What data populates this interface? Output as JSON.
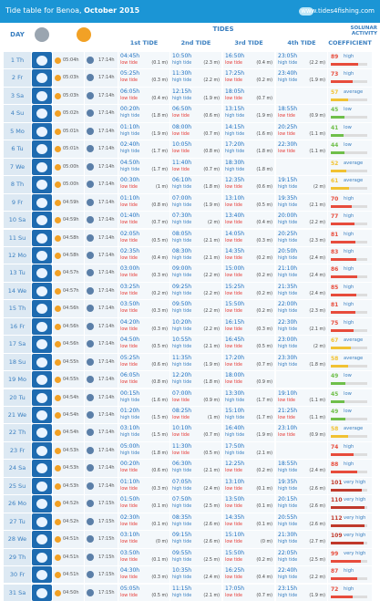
{
  "header": {
    "title_prefix": "Tide table for Benoa,",
    "title_month": "October 2015",
    "site": "www.tides4fishing.com"
  },
  "columns": {
    "day": "DAY",
    "tides": "TIDES",
    "tide1": "1st TIDE",
    "tide2": "2nd TIDE",
    "tide3": "3rd TIDE",
    "tide4": "4th TIDE",
    "coef": "COEFFICIENT",
    "solunar": "SOLUNAR ACTIVITY"
  },
  "rows": [
    {
      "day": "1 Th",
      "sr": "05:04h",
      "ss": "17:14h",
      "t": [
        [
          "04:45h",
          "low tide",
          "(0.1 m)"
        ],
        [
          "10:50h",
          "high tide",
          "(2.3 m)"
        ],
        [
          "16:50h",
          "low tide",
          "(0.4 m)"
        ],
        [
          "23:05h",
          "high tide",
          "(2.2 m)"
        ]
      ],
      "c": "89",
      "cl": "high"
    },
    {
      "day": "2 Fr",
      "sr": "05:03h",
      "ss": "17:14h",
      "t": [
        [
          "05:25h",
          "low tide",
          "(0.3 m)"
        ],
        [
          "11:30h",
          "high tide",
          "(2.2 m)"
        ],
        [
          "17:25h",
          "low tide",
          "(0.2 m)"
        ],
        [
          "23:40h",
          "high tide",
          "(1.9 m)"
        ]
      ],
      "c": "73",
      "cl": "high"
    },
    {
      "day": "3 Sa",
      "sr": "05:03h",
      "ss": "17:14h",
      "t": [
        [
          "06:05h",
          "low tide",
          "(0.4 m)"
        ],
        [
          "12:15h",
          "high tide",
          "(1.9 m)"
        ],
        [
          "18:05h",
          "low tide",
          "(0.7 m)"
        ],
        [
          "",
          "",
          ""
        ]
      ],
      "c": "57",
      "cl": "average"
    },
    {
      "day": "4 Su",
      "sr": "05:02h",
      "ss": "17:14h",
      "t": [
        [
          "00:20h",
          "high tide",
          "(1.8 m)"
        ],
        [
          "06:50h",
          "low tide",
          "(0.6 m)"
        ],
        [
          "13:15h",
          "high tide",
          "(1.9 m)"
        ],
        [
          "18:55h",
          "low tide",
          "(0.9 m)"
        ]
      ],
      "c": "45",
      "cl": "low"
    },
    {
      "day": "5 Mo",
      "sr": "05:01h",
      "ss": "17:14h",
      "t": [
        [
          "01:10h",
          "high tide",
          "(1.9 m)"
        ],
        [
          "08:00h",
          "low tide",
          "(0.7 m)"
        ],
        [
          "14:15h",
          "high tide",
          "(1.6 m)"
        ],
        [
          "20:25h",
          "low tide",
          "(1.1 m)"
        ]
      ],
      "c": "41",
      "cl": "low"
    },
    {
      "day": "6 Tu",
      "sr": "05:01h",
      "ss": "17:14h",
      "t": [
        [
          "02:40h",
          "high tide",
          "(1.7 m)"
        ],
        [
          "10:05h",
          "low tide",
          "(0.8 m)"
        ],
        [
          "17:20h",
          "high tide",
          "(1.8 m)"
        ],
        [
          "22:30h",
          "low tide",
          "(1.1 m)"
        ]
      ],
      "c": "44",
      "cl": "low"
    },
    {
      "day": "7 We",
      "sr": "05:00h",
      "ss": "17:14h",
      "t": [
        [
          "04:50h",
          "high tide",
          "(1.7 m)"
        ],
        [
          "11:40h",
          "low tide",
          "(0.7 m)"
        ],
        [
          "18:30h",
          "high tide",
          "(1.8 m)"
        ],
        [
          "",
          "",
          ""
        ]
      ],
      "c": "52",
      "cl": "average"
    },
    {
      "day": "8 Th",
      "sr": "05:00h",
      "ss": "17:14h",
      "t": [
        [
          "00:30h",
          "low tide",
          "(1 m)"
        ],
        [
          "06:10h",
          "high tide",
          "(1.8 m)"
        ],
        [
          "12:35h",
          "low tide",
          "(0.6 m)"
        ],
        [
          "19:15h",
          "high tide",
          "(2 m)"
        ]
      ],
      "c": "61",
      "cl": "average"
    },
    {
      "day": "9 Fr",
      "sr": "04:59h",
      "ss": "17:14h",
      "t": [
        [
          "01:10h",
          "low tide",
          "(0.8 m)"
        ],
        [
          "07:00h",
          "high tide",
          "(1.9 m)"
        ],
        [
          "13:10h",
          "low tide",
          "(0.5 m)"
        ],
        [
          "19:35h",
          "high tide",
          "(2.1 m)"
        ]
      ],
      "c": "70",
      "cl": "high"
    },
    {
      "day": "10 Sa",
      "sr": "04:59h",
      "ss": "17:14h",
      "t": [
        [
          "01:40h",
          "low tide",
          "(0.7 m)"
        ],
        [
          "07:30h",
          "high tide",
          "(2 m)"
        ],
        [
          "13:40h",
          "low tide",
          "(0.4 m)"
        ],
        [
          "20:00h",
          "high tide",
          "(2.2 m)"
        ]
      ],
      "c": "77",
      "cl": "high"
    },
    {
      "day": "11 Su",
      "sr": "04:58h",
      "ss": "17:14h",
      "t": [
        [
          "02:05h",
          "low tide",
          "(0.5 m)"
        ],
        [
          "08:05h",
          "high tide",
          "(2.1 m)"
        ],
        [
          "14:05h",
          "low tide",
          "(0.3 m)"
        ],
        [
          "20:25h",
          "high tide",
          "(2.3 m)"
        ]
      ],
      "c": "81",
      "cl": "high"
    },
    {
      "day": "12 Mo",
      "sr": "04:58h",
      "ss": "17:14h",
      "t": [
        [
          "02:35h",
          "low tide",
          "(0.4 m)"
        ],
        [
          "08:30h",
          "high tide",
          "(2.1 m)"
        ],
        [
          "14:35h",
          "low tide",
          "(0.2 m)"
        ],
        [
          "20:50h",
          "high tide",
          "(2.4 m)"
        ]
      ],
      "c": "83",
      "cl": "high"
    },
    {
      "day": "13 Tu",
      "sr": "04:57h",
      "ss": "17:14h",
      "t": [
        [
          "03:00h",
          "low tide",
          "(0.3 m)"
        ],
        [
          "09:00h",
          "high tide",
          "(2.2 m)"
        ],
        [
          "15:00h",
          "low tide",
          "(0.2 m)"
        ],
        [
          "21:10h",
          "high tide",
          "(2.4 m)"
        ]
      ],
      "c": "86",
      "cl": "high"
    },
    {
      "day": "14 We",
      "sr": "04:57h",
      "ss": "17:14h",
      "t": [
        [
          "03:25h",
          "low tide",
          "(0.2 m)"
        ],
        [
          "09:25h",
          "high tide",
          "(2.2 m)"
        ],
        [
          "15:25h",
          "low tide",
          "(0.2 m)"
        ],
        [
          "21:35h",
          "high tide",
          "(2.4 m)"
        ]
      ],
      "c": "85",
      "cl": "high"
    },
    {
      "day": "15 Th",
      "sr": "04:56h",
      "ss": "17:14h",
      "t": [
        [
          "03:50h",
          "low tide",
          "(0.3 m)"
        ],
        [
          "09:50h",
          "high tide",
          "(2.2 m)"
        ],
        [
          "15:50h",
          "low tide",
          "(0.2 m)"
        ],
        [
          "22:00h",
          "high tide",
          "(2.3 m)"
        ]
      ],
      "c": "81",
      "cl": "high"
    },
    {
      "day": "16 Fr",
      "sr": "04:56h",
      "ss": "17:14h",
      "t": [
        [
          "04:20h",
          "low tide",
          "(0.3 m)"
        ],
        [
          "10:20h",
          "high tide",
          "(2.2 m)"
        ],
        [
          "16:15h",
          "low tide",
          "(0.3 m)"
        ],
        [
          "22:30h",
          "high tide",
          "(2.1 m)"
        ]
      ],
      "c": "75",
      "cl": "high"
    },
    {
      "day": "17 Sa",
      "sr": "04:56h",
      "ss": "17:14h",
      "t": [
        [
          "04:50h",
          "low tide",
          "(0.5 m)"
        ],
        [
          "10:55h",
          "high tide",
          "(2.1 m)"
        ],
        [
          "16:45h",
          "low tide",
          "(0.5 m)"
        ],
        [
          "23:00h",
          "high tide",
          "(2 m)"
        ]
      ],
      "c": "67",
      "cl": "average"
    },
    {
      "day": "18 Su",
      "sr": "04:55h",
      "ss": "17:14h",
      "t": [
        [
          "05:25h",
          "low tide",
          "(0.6 m)"
        ],
        [
          "11:35h",
          "high tide",
          "(1.9 m)"
        ],
        [
          "17:20h",
          "low tide",
          "(0.7 m)"
        ],
        [
          "23:30h",
          "high tide",
          "(1.8 m)"
        ]
      ],
      "c": "58",
      "cl": "average"
    },
    {
      "day": "19 Mo",
      "sr": "04:55h",
      "ss": "17:14h",
      "t": [
        [
          "06:05h",
          "low tide",
          "(0.8 m)"
        ],
        [
          "12:20h",
          "high tide",
          "(1.8 m)"
        ],
        [
          "18:00h",
          "low tide",
          "(0.9 m)"
        ],
        [
          "",
          "",
          ""
        ]
      ],
      "c": "49",
      "cl": "low"
    },
    {
      "day": "20 Tu",
      "sr": "04:54h",
      "ss": "17:14h",
      "t": [
        [
          "00:15h",
          "high tide",
          "(1.6 m)"
        ],
        [
          "07:00h",
          "low tide",
          "(0.9 m)"
        ],
        [
          "13:30h",
          "high tide",
          "(1.7 m)"
        ],
        [
          "19:10h",
          "low tide",
          "(1.1 m)"
        ]
      ],
      "c": "45",
      "cl": "low"
    },
    {
      "day": "21 We",
      "sr": "04:54h",
      "ss": "17:14h",
      "t": [
        [
          "01:20h",
          "high tide",
          "(1.5 m)"
        ],
        [
          "08:25h",
          "low tide",
          "(1 m)"
        ],
        [
          "15:10h",
          "high tide",
          "(1.7 m)"
        ],
        [
          "21:25h",
          "low tide",
          "(1.1 m)"
        ]
      ],
      "c": "49",
      "cl": "low"
    },
    {
      "day": "22 Th",
      "sr": "04:54h",
      "ss": "17:14h",
      "t": [
        [
          "03:10h",
          "high tide",
          "(1.5 m)"
        ],
        [
          "10:10h",
          "low tide",
          "(0.7 m)"
        ],
        [
          "16:40h",
          "high tide",
          "(1.9 m)"
        ],
        [
          "23:10h",
          "low tide",
          "(0.9 m)"
        ]
      ],
      "c": "58",
      "cl": "average"
    },
    {
      "day": "23 Fr",
      "sr": "04:53h",
      "ss": "17:14h",
      "t": [
        [
          "05:00h",
          "high tide",
          "(1.8 m)"
        ],
        [
          "11:30h",
          "low tide",
          "(0.5 m)"
        ],
        [
          "17:50h",
          "high tide",
          "(2.1 m)"
        ],
        [
          "",
          "",
          ""
        ]
      ],
      "c": "74",
      "cl": "high"
    },
    {
      "day": "24 Sa",
      "sr": "04:53h",
      "ss": "17:14h",
      "t": [
        [
          "00:20h",
          "low tide",
          "(0.6 m)"
        ],
        [
          "06:30h",
          "high tide",
          "(2.1 m)"
        ],
        [
          "12:25h",
          "low tide",
          "(0.2 m)"
        ],
        [
          "18:55h",
          "high tide",
          "(2.4 m)"
        ]
      ],
      "c": "88",
      "cl": "high"
    },
    {
      "day": "25 Su",
      "sr": "04:53h",
      "ss": "17:14h",
      "t": [
        [
          "01:10h",
          "low tide",
          "(0.3 m)"
        ],
        [
          "07:05h",
          "high tide",
          "(2.4 m)"
        ],
        [
          "13:10h",
          "low tide",
          "(0.1 m)"
        ],
        [
          "19:35h",
          "high tide",
          "(2.6 m)"
        ]
      ],
      "c": "101",
      "cl": "very high"
    },
    {
      "day": "26 Mo",
      "sr": "04:52h",
      "ss": "17:15h",
      "t": [
        [
          "01:50h",
          "low tide",
          "(0.1 m)"
        ],
        [
          "07:50h",
          "high tide",
          "(2.5 m)"
        ],
        [
          "13:50h",
          "low tide",
          "(0.1 m)"
        ],
        [
          "20:15h",
          "high tide",
          "(2.6 m)"
        ]
      ],
      "c": "110",
      "cl": "very high"
    },
    {
      "day": "27 Tu",
      "sr": "04:52h",
      "ss": "17:15h",
      "t": [
        [
          "02:30h",
          "low tide",
          "(0.1 m)"
        ],
        [
          "08:35h",
          "high tide",
          "(2.6 m)"
        ],
        [
          "14:35h",
          "low tide",
          "(0.1 m)"
        ],
        [
          "20:55h",
          "high tide",
          "(2.6 m)"
        ]
      ],
      "c": "112",
      "cl": "very high"
    },
    {
      "day": "28 We",
      "sr": "04:51h",
      "ss": "17:15h",
      "t": [
        [
          "03:10h",
          "low tide",
          "(0 m)"
        ],
        [
          "09:15h",
          "high tide",
          "(2.6 m)"
        ],
        [
          "15:10h",
          "low tide",
          "(0 m)"
        ],
        [
          "21:30h",
          "high tide",
          "(2.7 m)"
        ]
      ],
      "c": "109",
      "cl": "very high"
    },
    {
      "day": "29 Th",
      "sr": "04:51h",
      "ss": "17:15h",
      "t": [
        [
          "03:50h",
          "low tide",
          "(0.1 m)"
        ],
        [
          "09:55h",
          "high tide",
          "(2.5 m)"
        ],
        [
          "15:50h",
          "low tide",
          "(0.2 m)"
        ],
        [
          "22:05h",
          "high tide",
          "(2.5 m)"
        ]
      ],
      "c": "99",
      "cl": "very high"
    },
    {
      "day": "30 Fr",
      "sr": "04:51h",
      "ss": "17:15h",
      "t": [
        [
          "04:30h",
          "low tide",
          "(0.3 m)"
        ],
        [
          "10:35h",
          "high tide",
          "(2.4 m)"
        ],
        [
          "16:25h",
          "low tide",
          "(0.4 m)"
        ],
        [
          "22:40h",
          "high tide",
          "(2.2 m)"
        ]
      ],
      "c": "87",
      "cl": "high"
    },
    {
      "day": "31 Sa",
      "sr": "04:50h",
      "ss": "17:15h",
      "t": [
        [
          "05:05h",
          "low tide",
          "(0.5 m)"
        ],
        [
          "11:15h",
          "high tide",
          "(2.1 m)"
        ],
        [
          "17:05h",
          "low tide",
          "(0.7 m)"
        ],
        [
          "23:15h",
          "high tide",
          "(1.9 m)"
        ]
      ],
      "c": "72",
      "cl": "high"
    }
  ],
  "colors": {
    "header": "#1b95d5",
    "low": "#e53935",
    "high_label": "#3a7fc0",
    "average": "#f1c232",
    "very_high": "#c0392b"
  }
}
